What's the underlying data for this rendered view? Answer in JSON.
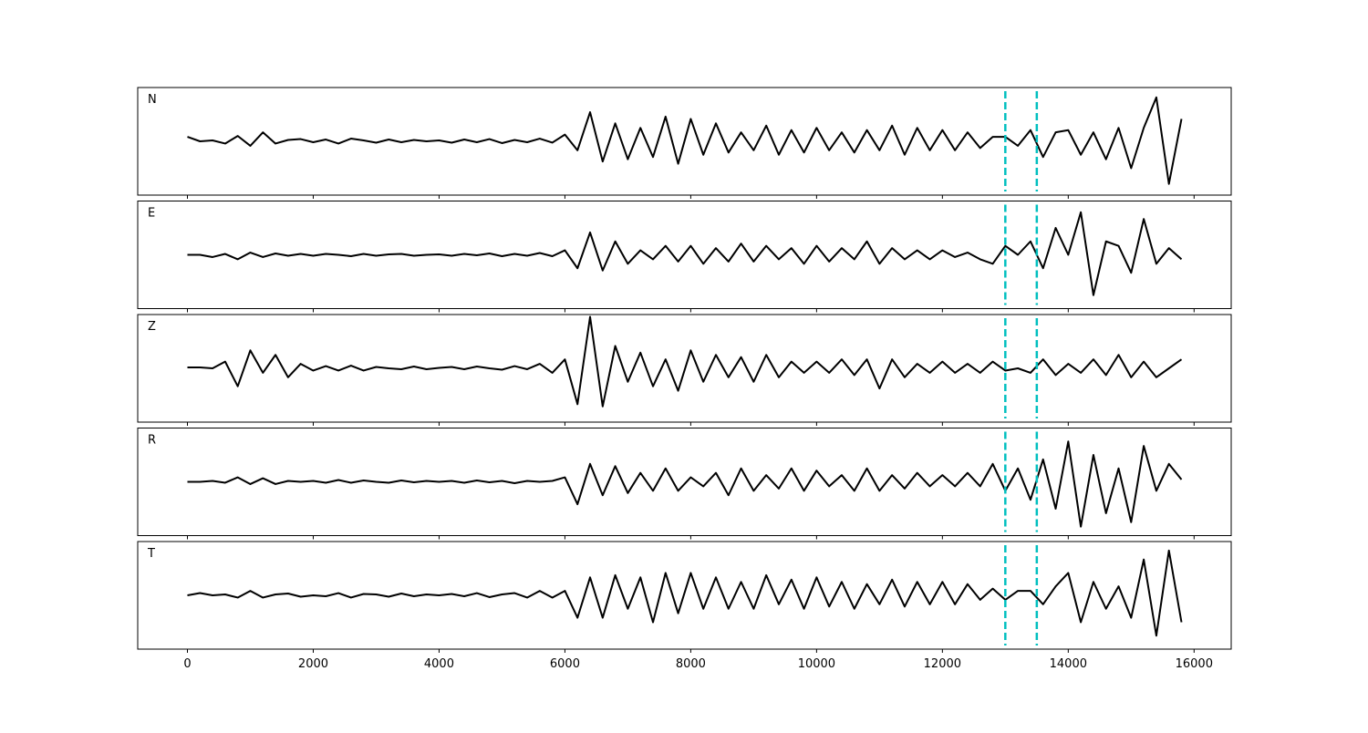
{
  "chart_data": {
    "type": "line",
    "subplots": true,
    "x": [
      0,
      200,
      400,
      600,
      800,
      1000,
      1200,
      1400,
      1600,
      1800,
      2000,
      2200,
      2400,
      2600,
      2800,
      3000,
      3200,
      3400,
      3600,
      3800,
      4000,
      4200,
      4400,
      4600,
      4800,
      5000,
      5200,
      5400,
      5600,
      5800,
      6000,
      6200,
      6400,
      6600,
      6800,
      7000,
      7200,
      7400,
      7600,
      7800,
      8000,
      8200,
      8400,
      8600,
      8800,
      9000,
      9200,
      9400,
      9600,
      9800,
      10000,
      10200,
      10400,
      10600,
      10800,
      11000,
      11200,
      11400,
      11600,
      11800,
      12000,
      12200,
      12400,
      12600,
      12800,
      13000,
      13200,
      13400,
      13600,
      13800,
      14000,
      14200,
      14400,
      14600,
      14800,
      15000,
      15200,
      15400,
      15600,
      15800
    ],
    "series": [
      {
        "name": "N",
        "color": "#000000",
        "values": [
          0.1,
          0.0,
          0.02,
          -0.05,
          0.12,
          -0.1,
          0.2,
          -0.05,
          0.03,
          0.05,
          -0.02,
          0.04,
          -0.05,
          0.06,
          0.02,
          -0.03,
          0.04,
          -0.02,
          0.03,
          0.0,
          0.02,
          -0.03,
          0.04,
          -0.02,
          0.05,
          -0.04,
          0.03,
          -0.02,
          0.06,
          -0.03,
          0.15,
          -0.2,
          0.65,
          -0.45,
          0.4,
          -0.4,
          0.3,
          -0.35,
          0.55,
          -0.5,
          0.5,
          -0.3,
          0.4,
          -0.25,
          0.2,
          -0.2,
          0.35,
          -0.3,
          0.25,
          -0.25,
          0.3,
          -0.2,
          0.2,
          -0.25,
          0.25,
          -0.2,
          0.35,
          -0.3,
          0.3,
          -0.2,
          0.25,
          -0.2,
          0.2,
          -0.15,
          0.1,
          0.1,
          -0.1,
          0.25,
          -0.35,
          0.2,
          0.25,
          -0.3,
          0.2,
          -0.4,
          0.3,
          -0.6,
          0.3,
          0.98,
          -0.95,
          0.5
        ]
      },
      {
        "name": "E",
        "color": "#000000",
        "values": [
          0.0,
          0.0,
          -0.05,
          0.02,
          -0.1,
          0.05,
          -0.05,
          0.03,
          -0.02,
          0.02,
          -0.02,
          0.02,
          0.0,
          -0.03,
          0.02,
          -0.02,
          0.01,
          0.02,
          -0.02,
          0.0,
          0.01,
          -0.02,
          0.02,
          -0.01,
          0.03,
          -0.03,
          0.02,
          -0.02,
          0.04,
          -0.03,
          0.1,
          -0.3,
          0.5,
          -0.35,
          0.3,
          -0.2,
          0.1,
          -0.1,
          0.2,
          -0.15,
          0.2,
          -0.2,
          0.15,
          -0.15,
          0.25,
          -0.15,
          0.2,
          -0.1,
          0.15,
          -0.2,
          0.2,
          -0.15,
          0.15,
          -0.1,
          0.3,
          -0.2,
          0.15,
          -0.1,
          0.1,
          -0.1,
          0.1,
          -0.05,
          0.05,
          -0.1,
          -0.2,
          0.2,
          0.0,
          0.3,
          -0.3,
          0.6,
          0.0,
          0.95,
          -0.9,
          0.3,
          0.2,
          -0.4,
          0.8,
          -0.2,
          0.15,
          -0.1
        ]
      },
      {
        "name": "Z",
        "color": "#000000",
        "values": [
          0.02,
          0.02,
          0.0,
          0.15,
          -0.4,
          0.4,
          -0.1,
          0.3,
          -0.2,
          0.1,
          -0.05,
          0.05,
          -0.05,
          0.06,
          -0.05,
          0.03,
          0.0,
          -0.02,
          0.04,
          -0.02,
          0.01,
          0.03,
          -0.02,
          0.04,
          0.0,
          -0.03,
          0.05,
          -0.02,
          0.1,
          -0.1,
          0.2,
          -0.8,
          1.15,
          -0.85,
          0.5,
          -0.3,
          0.35,
          -0.4,
          0.2,
          -0.5,
          0.4,
          -0.3,
          0.3,
          -0.2,
          0.25,
          -0.3,
          0.3,
          -0.2,
          0.15,
          -0.1,
          0.15,
          -0.1,
          0.2,
          -0.15,
          0.2,
          -0.45,
          0.2,
          -0.2,
          0.1,
          -0.1,
          0.15,
          -0.1,
          0.1,
          -0.1,
          0.15,
          -0.05,
          0.0,
          -0.1,
          0.2,
          -0.15,
          0.1,
          -0.1,
          0.2,
          -0.15,
          0.3,
          -0.2,
          0.15,
          -0.2,
          0.0,
          0.2
        ]
      },
      {
        "name": "R",
        "color": "#000000",
        "values": [
          0.0,
          0.0,
          0.02,
          -0.02,
          0.1,
          -0.05,
          0.08,
          -0.05,
          0.02,
          0.0,
          0.02,
          -0.02,
          0.04,
          -0.02,
          0.03,
          0.0,
          -0.02,
          0.03,
          -0.01,
          0.02,
          0.0,
          0.02,
          -0.02,
          0.03,
          -0.01,
          0.02,
          -0.03,
          0.02,
          0.0,
          0.02,
          0.1,
          -0.5,
          0.4,
          -0.3,
          0.35,
          -0.25,
          0.2,
          -0.2,
          0.3,
          -0.2,
          0.1,
          -0.1,
          0.2,
          -0.3,
          0.3,
          -0.2,
          0.15,
          -0.15,
          0.3,
          -0.2,
          0.25,
          -0.1,
          0.15,
          -0.2,
          0.3,
          -0.2,
          0.15,
          -0.15,
          0.2,
          -0.1,
          0.15,
          -0.1,
          0.2,
          -0.1,
          0.4,
          -0.2,
          0.3,
          -0.4,
          0.5,
          -0.6,
          0.9,
          -1.0,
          0.6,
          -0.7,
          0.3,
          -0.9,
          0.8,
          -0.2,
          0.4,
          0.05
        ]
      },
      {
        "name": "T",
        "color": "#000000",
        "values": [
          0.0,
          0.05,
          0.0,
          0.02,
          -0.05,
          0.1,
          -0.05,
          0.02,
          0.04,
          -0.03,
          0.0,
          -0.02,
          0.05,
          -0.05,
          0.03,
          0.02,
          -0.03,
          0.04,
          -0.02,
          0.02,
          0.0,
          0.03,
          -0.02,
          0.05,
          -0.04,
          0.02,
          0.05,
          -0.05,
          0.1,
          -0.05,
          0.1,
          -0.5,
          0.4,
          -0.5,
          0.45,
          -0.3,
          0.4,
          -0.6,
          0.5,
          -0.4,
          0.5,
          -0.3,
          0.4,
          -0.3,
          0.3,
          -0.3,
          0.45,
          -0.2,
          0.35,
          -0.3,
          0.4,
          -0.25,
          0.3,
          -0.3,
          0.25,
          -0.2,
          0.35,
          -0.25,
          0.3,
          -0.2,
          0.3,
          -0.2,
          0.25,
          -0.1,
          0.15,
          -0.1,
          0.1,
          0.1,
          -0.2,
          0.2,
          0.5,
          -0.6,
          0.3,
          -0.3,
          0.2,
          -0.5,
          0.8,
          -0.9,
          1.0,
          -0.6
        ]
      }
    ],
    "xlim": [
      -790,
      16590
    ],
    "ylim": [
      -1.2,
      1.2
    ],
    "xticks": [
      0,
      2000,
      4000,
      6000,
      8000,
      10000,
      12000,
      14000,
      16000
    ],
    "vlines": [
      13000,
      13500
    ],
    "vline_color": "#00bfbf",
    "vline_style": "dashed"
  }
}
